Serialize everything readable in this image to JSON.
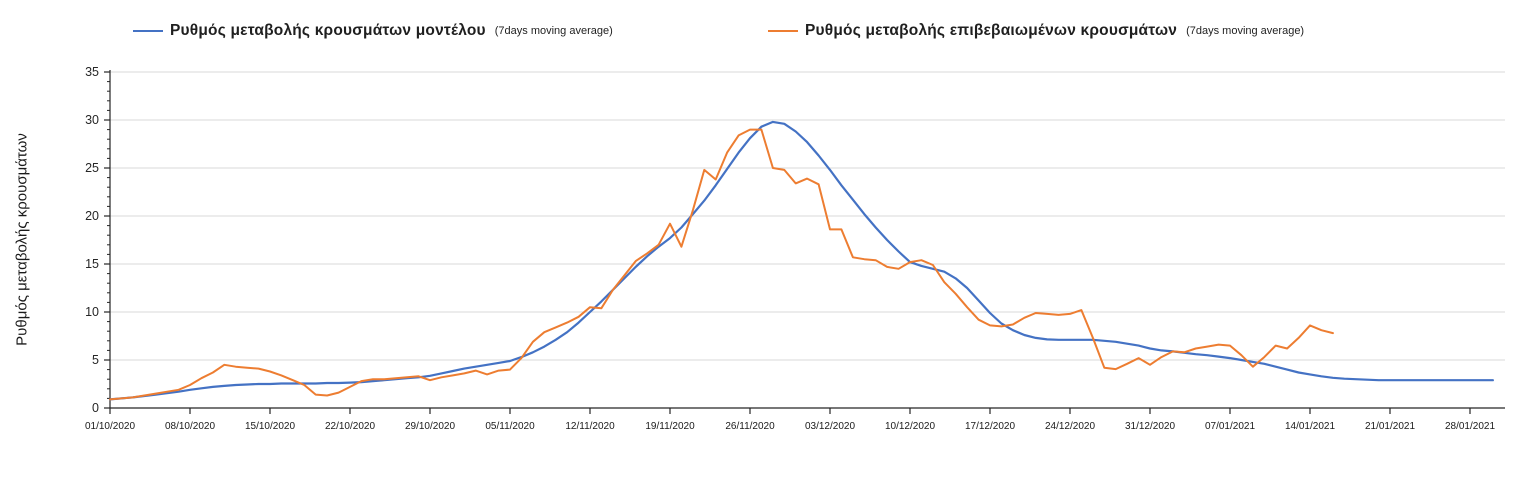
{
  "chart_data": {
    "type": "line",
    "title": "",
    "ylabel": "Ρυθμός μεταβολής κρουσμάτων",
    "ylim": [
      0,
      35
    ],
    "y_ticks": [
      0,
      5,
      10,
      15,
      20,
      25,
      30,
      35
    ],
    "y_minor_step": 1,
    "grid": "horizontal-major",
    "legend_position": "top",
    "x_start_date": "01/10/2020",
    "x_tick_interval_days": 7,
    "x_tick_labels": [
      "01/10/2020",
      "08/10/2020",
      "15/10/2020",
      "22/10/2020",
      "29/10/2020",
      "05/11/2020",
      "12/11/2020",
      "19/11/2020",
      "26/11/2020",
      "03/12/2020",
      "10/12/2020",
      "17/12/2020",
      "24/12/2020",
      "31/12/2020",
      "07/01/2021",
      "14/01/2021",
      "21/01/2021",
      "28/01/2021"
    ],
    "axis_color": "#262626",
    "grid_color": "#d9d9d9",
    "series": [
      {
        "name": "Ρυθμός μεταβολής κρουσμάτων μοντέλου",
        "name_suffix": "(7days moving average)",
        "color": "#4472C4",
        "stroke_width": 2.2,
        "values": [
          0.9,
          1.0,
          1.1,
          1.25,
          1.4,
          1.55,
          1.7,
          1.9,
          2.05,
          2.2,
          2.3,
          2.4,
          2.45,
          2.5,
          2.5,
          2.55,
          2.55,
          2.55,
          2.55,
          2.6,
          2.6,
          2.65,
          2.7,
          2.8,
          2.9,
          3.0,
          3.1,
          3.2,
          3.35,
          3.6,
          3.85,
          4.1,
          4.3,
          4.5,
          4.7,
          4.9,
          5.3,
          5.8,
          6.4,
          7.1,
          7.9,
          8.9,
          10.0,
          11.1,
          12.3,
          13.5,
          14.7,
          15.8,
          16.8,
          17.7,
          18.8,
          20.2,
          21.6,
          23.2,
          24.9,
          26.6,
          28.1,
          29.3,
          29.8,
          29.6,
          28.8,
          27.7,
          26.3,
          24.8,
          23.2,
          21.7,
          20.2,
          18.8,
          17.5,
          16.3,
          15.2,
          14.8,
          14.5,
          14.2,
          13.5,
          12.5,
          11.2,
          9.9,
          8.8,
          8.1,
          7.6,
          7.3,
          7.15,
          7.1,
          7.1,
          7.1,
          7.1,
          7.0,
          6.9,
          6.7,
          6.5,
          6.2,
          6.0,
          5.9,
          5.75,
          5.6,
          5.5,
          5.35,
          5.2,
          5.0,
          4.8,
          4.6,
          4.3,
          4.0,
          3.7,
          3.5,
          3.3,
          3.15,
          3.05,
          3.0,
          2.95,
          2.9,
          2.9,
          2.9,
          2.9,
          2.9,
          2.9,
          2.9,
          2.9,
          2.9,
          2.9,
          2.9
        ]
      },
      {
        "name": "Ρυθμός μεταβολής επιβεβαιωμένων κρουσμάτων",
        "name_suffix": "(7days moving average)",
        "color": "#ED7D31",
        "stroke_width": 2.0,
        "values": [
          0.9,
          1.0,
          1.1,
          1.3,
          1.5,
          1.7,
          1.9,
          2.4,
          3.1,
          3.7,
          4.5,
          4.3,
          4.2,
          4.1,
          3.8,
          3.4,
          2.9,
          2.4,
          1.4,
          1.3,
          1.6,
          2.2,
          2.8,
          3.0,
          3.0,
          3.1,
          3.2,
          3.3,
          2.9,
          3.2,
          3.4,
          3.6,
          3.9,
          3.5,
          3.9,
          4.0,
          5.2,
          6.9,
          7.9,
          8.4,
          8.9,
          9.5,
          10.5,
          10.4,
          12.3,
          13.8,
          15.3,
          16.1,
          17.0,
          19.2,
          16.8,
          20.6,
          24.8,
          23.8,
          26.6,
          28.4,
          29.0,
          29.0,
          25.0,
          24.8,
          23.4,
          23.9,
          23.3,
          18.6,
          18.6,
          15.7,
          15.5,
          15.4,
          14.7,
          14.5,
          15.2,
          15.4,
          14.9,
          13.1,
          11.9,
          10.5,
          9.2,
          8.6,
          8.5,
          8.7,
          9.4,
          9.9,
          9.8,
          9.7,
          9.8,
          10.2,
          7.3,
          4.2,
          4.05,
          4.6,
          5.2,
          4.5,
          5.3,
          5.9,
          5.8,
          6.2,
          6.4,
          6.6,
          6.5,
          5.5,
          4.3,
          5.3,
          6.5,
          6.2,
          7.3,
          8.6,
          8.1,
          7.8
        ]
      }
    ]
  }
}
